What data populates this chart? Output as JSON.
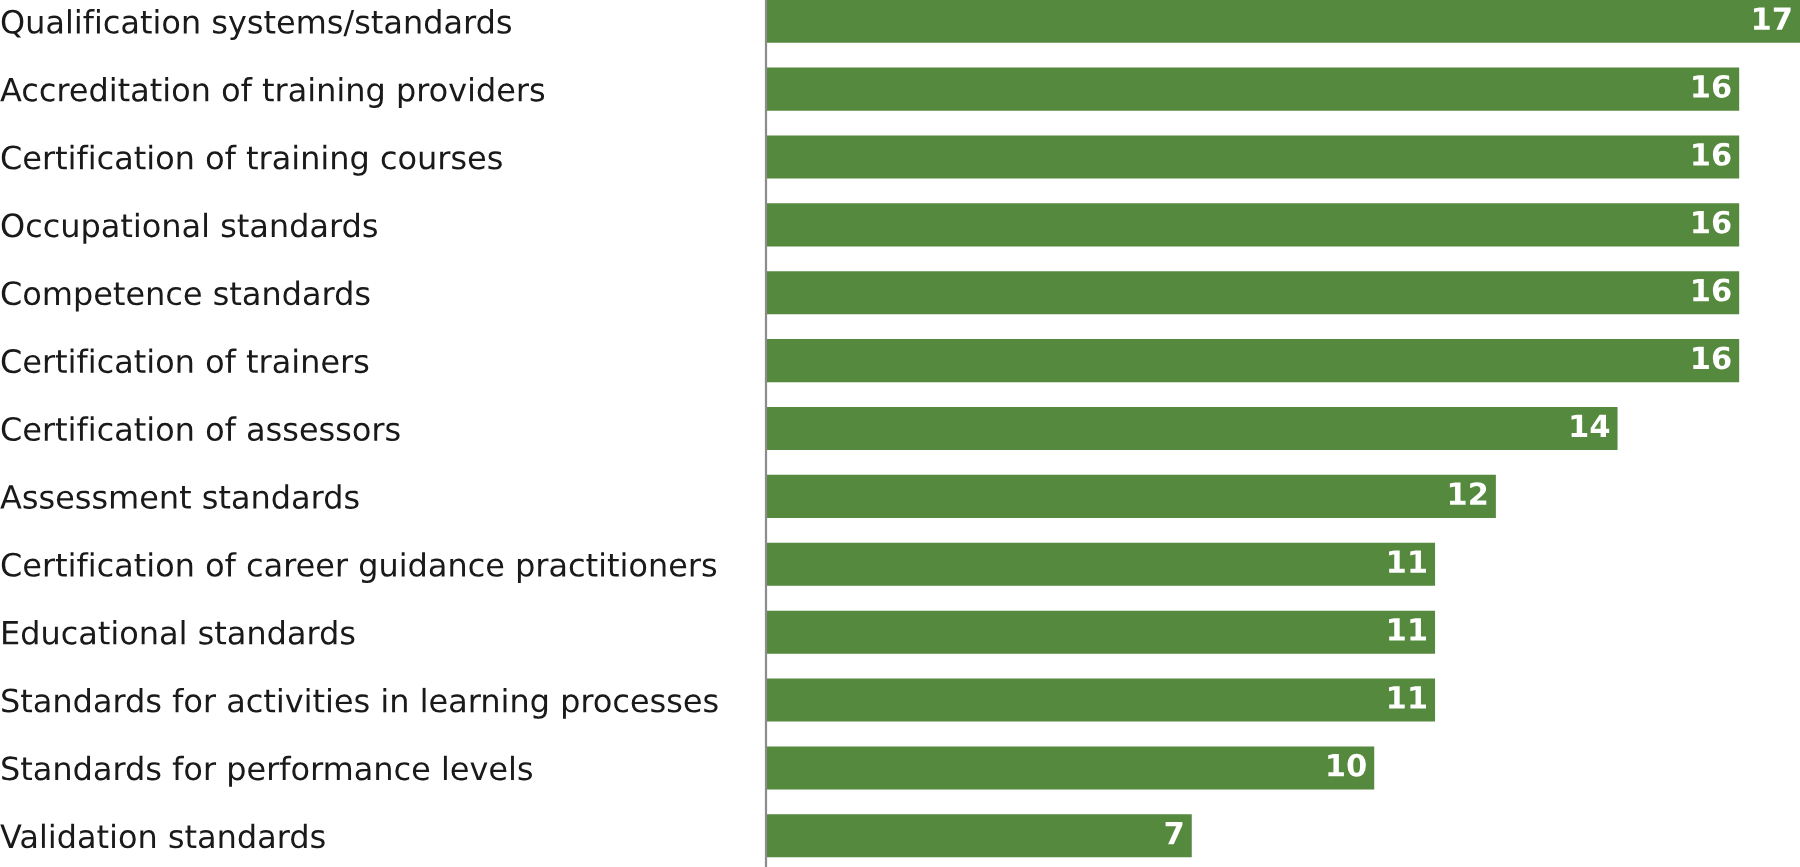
{
  "chart_data": {
    "type": "bar",
    "orientation": "horizontal",
    "categories": [
      "Qualification systems/standards",
      "Accreditation of training providers",
      "Certification of training courses",
      "Occupational standards",
      "Competence standards",
      "Certification of trainers",
      "Certification of assessors",
      "Assessment standards",
      "Certification of career guidance practitioners",
      "Educational standards",
      "Standards for activities in learning processes",
      "Standards for performance levels",
      "Validation standards"
    ],
    "values": [
      17,
      16,
      16,
      16,
      16,
      16,
      14,
      12,
      11,
      11,
      11,
      10,
      7
    ],
    "color": "#55893d",
    "xlim": [
      0,
      17
    ],
    "tick_labels": "y",
    "data_labels": true
  }
}
